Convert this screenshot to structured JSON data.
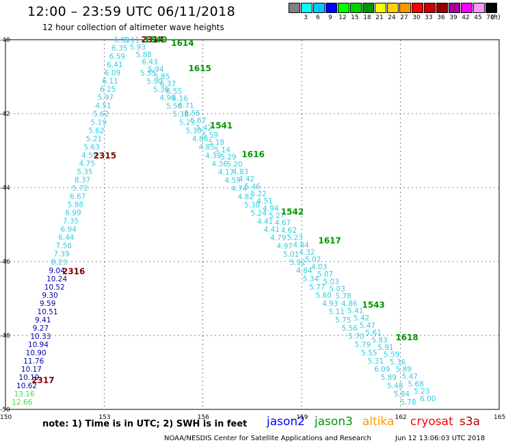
{
  "header": {
    "title": "12:00 – 23:59 UTC 06/11/2018",
    "subtitle": "12 hour collection of altimeter wave heights"
  },
  "colorbar": {
    "unit": "(ft)",
    "entries": [
      {
        "label": "",
        "color": "#808080"
      },
      {
        "label": "3",
        "color": "#00ffff"
      },
      {
        "label": "6",
        "color": "#00c8ff"
      },
      {
        "label": "9",
        "color": "#0000ff"
      },
      {
        "label": "12",
        "color": "#00ff00"
      },
      {
        "label": "15",
        "color": "#00d000"
      },
      {
        "label": "18",
        "color": "#009600"
      },
      {
        "label": "21",
        "color": "#ffff00"
      },
      {
        "label": "24",
        "color": "#ffd000"
      },
      {
        "label": "27",
        "color": "#ff9600"
      },
      {
        "label": "30",
        "color": "#ff0000"
      },
      {
        "label": "33",
        "color": "#c80000"
      },
      {
        "label": "36",
        "color": "#960000"
      },
      {
        "label": "39",
        "color": "#a000a0"
      },
      {
        "label": "42",
        "color": "#ff00ff"
      },
      {
        "label": "45",
        "color": "#ff96ff"
      },
      {
        "label": "70",
        "color": "#000000"
      }
    ]
  },
  "axes": {
    "x_ticks": [
      "150",
      "153",
      "156",
      "159",
      "162",
      "165"
    ],
    "y_ticks": [
      "-40",
      "-42",
      "-44",
      "-46",
      "-48",
      "-50"
    ],
    "xlim": [
      150,
      165
    ],
    "ylim": [
      -50,
      -40
    ]
  },
  "colors": {
    "low": "#33ccdd",
    "mid": "#0000aa",
    "high": "#44dd44",
    "time": "#009600",
    "time_dark": "#800000"
  },
  "tracks": [
    {
      "name": "pass-descending",
      "lon_start": 153.5,
      "lat_start": -40.0,
      "lon_end": 150.4,
      "lat_end": -49.8,
      "values": [
        "6.59",
        "6.35",
        "6.59",
        "6.41",
        "6.09",
        "6.11",
        "6.25",
        "5.97",
        "4.51",
        "5.62",
        "5.19",
        "5.62",
        "5.21",
        "5.63",
        "4.59",
        "4.75",
        "5.35",
        "8.37",
        "5.72",
        "6.67",
        "5.98",
        "6.99",
        "7.35",
        "6.94",
        "6.44",
        "7.56",
        "7.39",
        "8.23",
        "9.04",
        "10.24",
        "10.52",
        "9.30",
        "9.59",
        "10.51",
        "9.41",
        "9.27",
        "10.33",
        "10.94",
        "10.90",
        "11.76",
        "10.17",
        "10.19",
        "10.62",
        "13.16",
        "12.66"
      ],
      "times": [
        {
          "label": "2314",
          "frac": 0.0,
          "dx": 30,
          "color": "#800000"
        },
        {
          "label": "2315",
          "frac": 0.32,
          "dx": 8,
          "color": "#800000"
        },
        {
          "label": "2316",
          "frac": 0.64,
          "dx": 10,
          "color": "#800000"
        },
        {
          "label": "2317",
          "frac": 0.94,
          "dx": 10,
          "color": "#800000"
        }
      ]
    },
    {
      "name": "pass-ascending",
      "lon_start": 153.8,
      "lat_start": -40.0,
      "lon_end": 162.8,
      "lat_end": -49.7,
      "values": [
        "6.11",
        "5.93",
        "5.88",
        "6.43",
        "5.94",
        "5.85",
        "6.37",
        "6.55",
        "6.16",
        "5.71",
        "6.56",
        "6.67",
        "5.42",
        "5.59",
        "5.18",
        "5.14",
        "5.29",
        "5.20",
        "4.83",
        "4.42",
        "5.46",
        "5.22",
        "4.51",
        "4.94",
        "5.27",
        "4.67",
        "4.62",
        "5.23",
        "4.84",
        "4.32",
        "5.02",
        "4.03",
        "5.07",
        "5.03",
        "5.03",
        "5.78",
        "4.86",
        "5.41",
        "5.42",
        "5.47",
        "5.61",
        "5.83",
        "5.91",
        "5.59",
        "5.36",
        "5.89",
        "5.47",
        "5.68",
        "5.23",
        "6.00"
      ],
      "times": [
        {
          "label": "1540",
          "frac": 0.0,
          "dx": 20,
          "color": "#009600"
        },
        {
          "label": "1614",
          "frac": 0.01,
          "dx": 55,
          "color": "#009600"
        },
        {
          "label": "1615",
          "frac": 0.08,
          "dx": 50,
          "color": "#009600"
        },
        {
          "label": "1541",
          "frac": 0.24,
          "dx": 12,
          "color": "#009600"
        },
        {
          "label": "1616",
          "frac": 0.32,
          "dx": 24,
          "color": "#009600"
        },
        {
          "label": "1542",
          "frac": 0.48,
          "dx": 12,
          "color": "#009600"
        },
        {
          "label": "1617",
          "frac": 0.56,
          "dx": 32,
          "color": "#009600"
        },
        {
          "label": "1543",
          "frac": 0.74,
          "dx": 18,
          "color": "#009600"
        },
        {
          "label": "1618",
          "frac": 0.83,
          "dx": 28,
          "color": "#009600"
        }
      ]
    },
    {
      "name": "pass-ascending-2",
      "lon_start": 154.3,
      "lat_start": -40.9,
      "lon_end": 162.2,
      "lat_end": -49.8,
      "values": [
        "5.55",
        "5.90",
        "5.36",
        "4.90",
        "5.56",
        "5.38",
        "5.23",
        "5.30",
        "4.86",
        "4.85",
        "4.39",
        "4.36",
        "4.17",
        "4.59",
        "4.74",
        "4.82",
        "5.38",
        "5.24",
        "4.41",
        "4.41",
        "4.79",
        "4.97",
        "5.01",
        "5.92",
        "4.84",
        "5.34",
        "5.77",
        "5.60",
        "4.93",
        "5.11",
        "5.75",
        "5.56",
        "5.70",
        "5.79",
        "5.55",
        "5.31",
        "6.09",
        "5.89",
        "5.48",
        "5.84",
        "5.78"
      ],
      "times": []
    }
  ],
  "note": "note:  1) Time is in UTC;  2) SWH is in feet",
  "missions": [
    {
      "label": "jason2",
      "color": "#0000ff"
    },
    {
      "label": "jason3",
      "color": "#009600"
    },
    {
      "label": "altika",
      "color": "#ff9600"
    },
    {
      "label": "cryosat",
      "color": "#ff0000"
    },
    {
      "label": "s3a",
      "color": "#b40000"
    }
  ],
  "footer": {
    "source": "NOAA/NESDIS Center for Satellite Applications and Research",
    "timestamp": "Jun 12 13:06:03 UTC 2018"
  }
}
